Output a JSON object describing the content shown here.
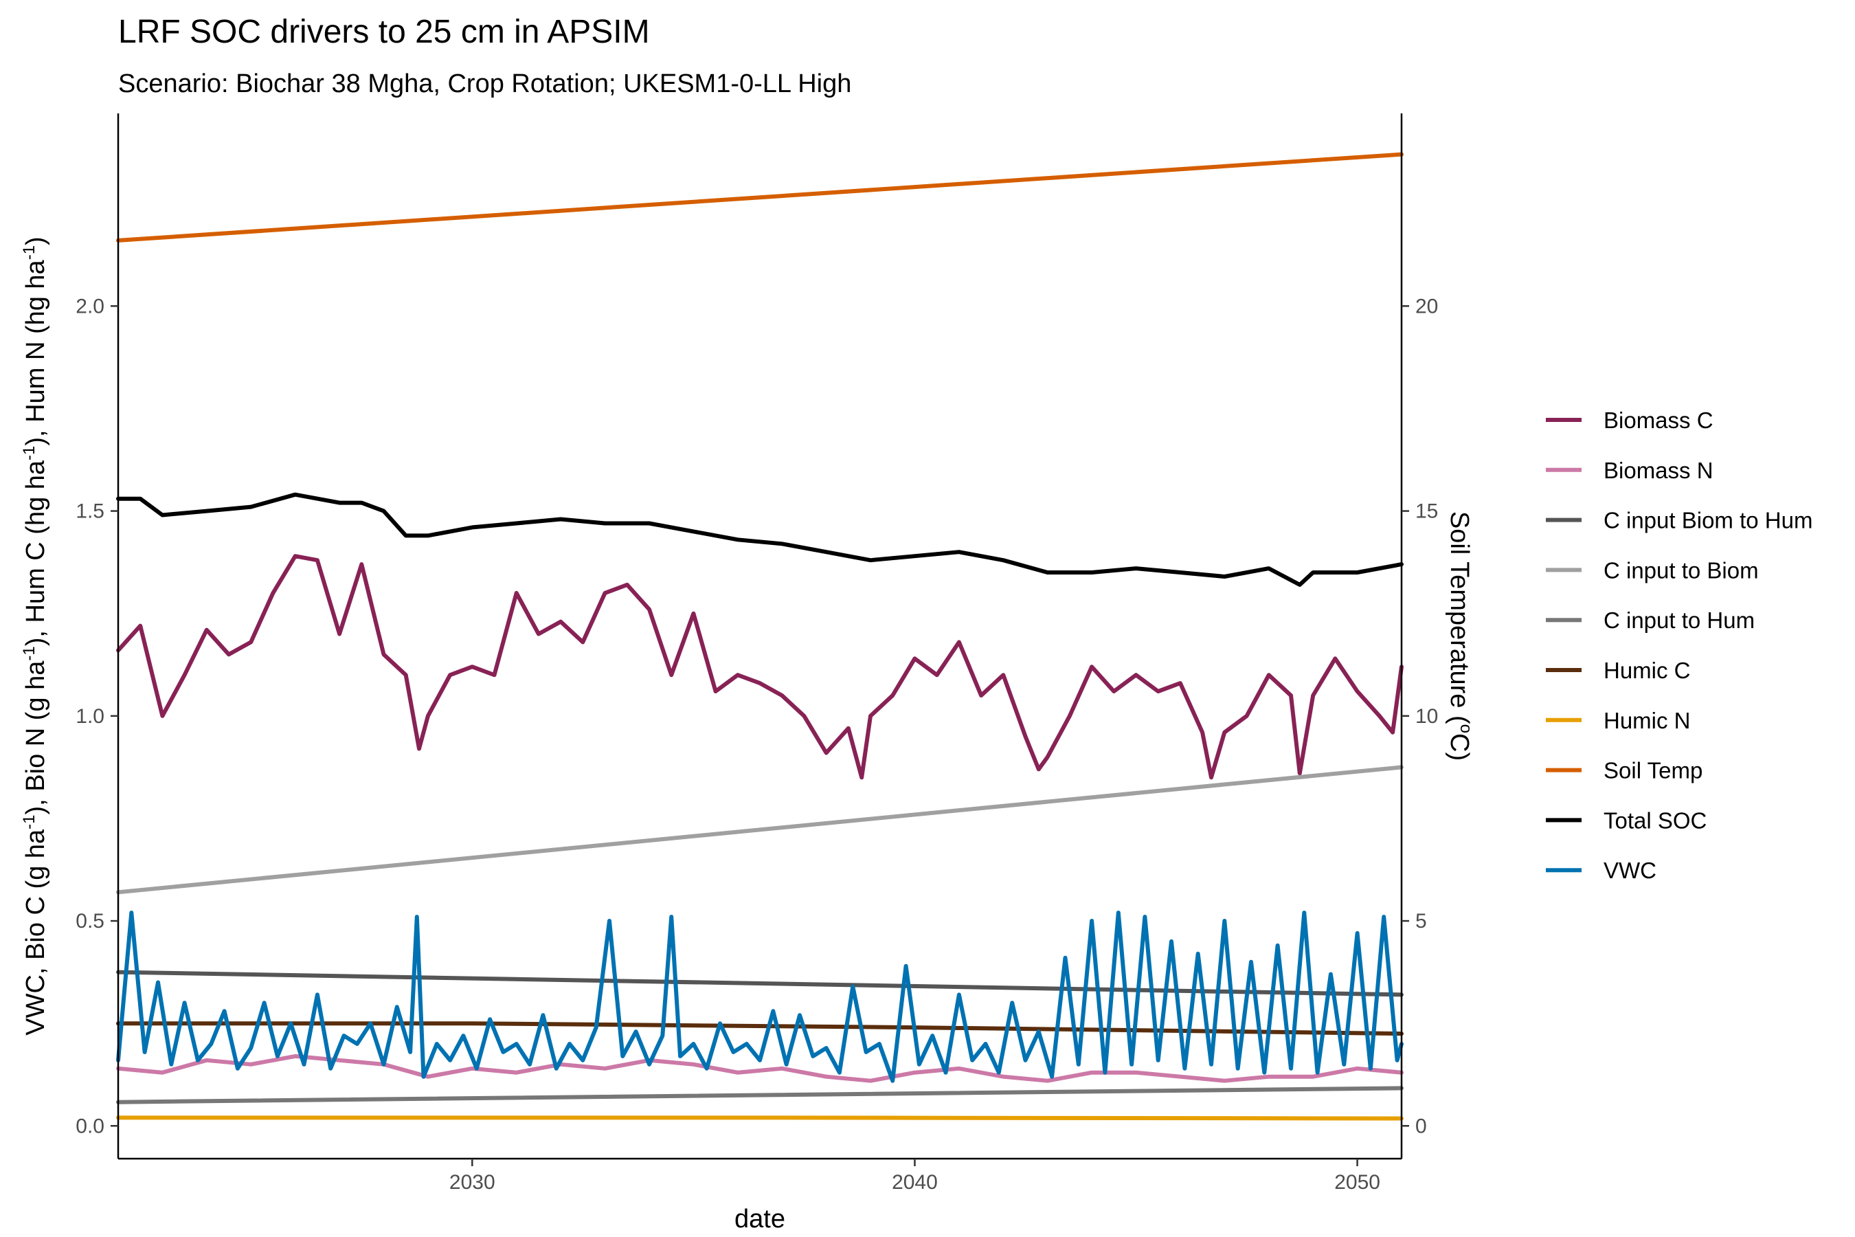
{
  "chart_data": {
    "type": "line",
    "title": "LRF SOC drivers to 25 cm in APSIM",
    "subtitle": "Scenario: Biochar 38 Mgha, Crop Rotation; UKESM1-0-LL High",
    "xlabel": "date",
    "ylabel_left": "VWC, Bio C (g ha-1), Bio N (g ha-1), Hum C (hg ha-1), Hum N (hg ha-1)",
    "ylabel_left_parts": [
      {
        "t": "VWC, Bio C (g ha"
      },
      {
        "t": "-1",
        "sup": true
      },
      {
        "t": "), Bio N (g ha"
      },
      {
        "t": "-1",
        "sup": true
      },
      {
        "t": "), Hum C (hg ha"
      },
      {
        "t": "-1",
        "sup": true
      },
      {
        "t": "), Hum N (hg ha"
      },
      {
        "t": "-1",
        "sup": true
      },
      {
        "t": ")"
      }
    ],
    "ylabel_right": "Soil Temperature (oC)",
    "ylabel_right_parts": [
      {
        "t": "Soil Temperature ("
      },
      {
        "t": "o",
        "sup": true
      },
      {
        "t": "C)"
      }
    ],
    "xlim": [
      2022.0,
      2051.0
    ],
    "ylim_left": [
      -0.08,
      2.47
    ],
    "ylim_right": [
      -0.8,
      24.7
    ],
    "x_ticks": [
      2030,
      2040,
      2050
    ],
    "y_left_ticks": [
      0.0,
      0.5,
      1.0,
      1.5,
      2.0
    ],
    "y_left_tick_labels": [
      "0.0",
      "0.5",
      "1.0",
      "1.5",
      "2.0"
    ],
    "y_right_ticks": [
      0,
      5,
      10,
      15,
      20
    ],
    "y_right_tick_labels": [
      "0",
      "5",
      "10",
      "15",
      "20"
    ],
    "legend_position": "right",
    "grid": false,
    "series": [
      {
        "name": "Biomass C",
        "color": "#882255",
        "axis": "left",
        "x": [
          2022.0,
          2022.5,
          2023.0,
          2023.5,
          2024.0,
          2024.5,
          2025.0,
          2025.5,
          2026.0,
          2026.5,
          2027.0,
          2027.5,
          2028.0,
          2028.5,
          2028.8,
          2029.0,
          2029.5,
          2030.0,
          2030.5,
          2031.0,
          2031.5,
          2032.0,
          2032.5,
          2033.0,
          2033.5,
          2034.0,
          2034.5,
          2035.0,
          2035.5,
          2036.0,
          2036.5,
          2037.0,
          2037.5,
          2038.0,
          2038.5,
          2038.8,
          2039.0,
          2039.5,
          2040.0,
          2040.5,
          2041.0,
          2041.5,
          2042.0,
          2042.5,
          2042.8,
          2043.0,
          2043.5,
          2044.0,
          2044.5,
          2045.0,
          2045.5,
          2046.0,
          2046.5,
          2046.7,
          2047.0,
          2047.5,
          2048.0,
          2048.5,
          2048.7,
          2049.0,
          2049.5,
          2050.0,
          2050.5,
          2050.8,
          2051.0
        ],
        "values": [
          1.16,
          1.22,
          1.0,
          1.1,
          1.21,
          1.15,
          1.18,
          1.3,
          1.39,
          1.38,
          1.2,
          1.37,
          1.15,
          1.1,
          0.92,
          1.0,
          1.1,
          1.12,
          1.1,
          1.3,
          1.2,
          1.23,
          1.18,
          1.3,
          1.32,
          1.26,
          1.1,
          1.25,
          1.06,
          1.1,
          1.08,
          1.05,
          1.0,
          0.91,
          0.97,
          0.85,
          1.0,
          1.05,
          1.14,
          1.1,
          1.18,
          1.05,
          1.1,
          0.95,
          0.87,
          0.9,
          1.0,
          1.12,
          1.06,
          1.1,
          1.06,
          1.08,
          0.96,
          0.85,
          0.96,
          1.0,
          1.1,
          1.05,
          0.86,
          1.05,
          1.14,
          1.06,
          1.0,
          0.96,
          1.12
        ]
      },
      {
        "name": "Biomass N",
        "color": "#CC79A7",
        "axis": "left",
        "x": [
          2022.0,
          2023.0,
          2024.0,
          2025.0,
          2026.0,
          2027.0,
          2028.0,
          2029.0,
          2030.0,
          2031.0,
          2032.0,
          2033.0,
          2034.0,
          2035.0,
          2036.0,
          2037.0,
          2038.0,
          2039.0,
          2040.0,
          2041.0,
          2042.0,
          2043.0,
          2044.0,
          2045.0,
          2046.0,
          2047.0,
          2048.0,
          2049.0,
          2050.0,
          2051.0
        ],
        "values": [
          0.14,
          0.13,
          0.16,
          0.15,
          0.17,
          0.16,
          0.15,
          0.12,
          0.14,
          0.13,
          0.15,
          0.14,
          0.16,
          0.15,
          0.13,
          0.14,
          0.12,
          0.11,
          0.13,
          0.14,
          0.12,
          0.11,
          0.13,
          0.13,
          0.12,
          0.11,
          0.12,
          0.12,
          0.14,
          0.13
        ]
      },
      {
        "name": "C input Biom to Hum",
        "color": "#555555",
        "axis": "left",
        "x": [
          2022.0,
          2051.0
        ],
        "values": [
          0.375,
          0.32
        ]
      },
      {
        "name": "C input to Biom",
        "color": "#A0A0A0",
        "axis": "left",
        "x": [
          2022.0,
          2051.0
        ],
        "values": [
          0.57,
          0.875
        ]
      },
      {
        "name": "C input to Hum",
        "color": "#777777",
        "axis": "left",
        "x": [
          2022.0,
          2051.0
        ],
        "values": [
          0.058,
          0.092
        ]
      },
      {
        "name": "Humic C",
        "color": "#5A2D0C",
        "axis": "left",
        "x": [
          2022.0,
          2030.0,
          2040.0,
          2051.0
        ],
        "values": [
          0.25,
          0.25,
          0.24,
          0.225
        ]
      },
      {
        "name": "Humic N",
        "color": "#E69F00",
        "axis": "left",
        "x": [
          2022.0,
          2037.0,
          2051.0
        ],
        "values": [
          0.02,
          0.02,
          0.018
        ]
      },
      {
        "name": "Soil Temp",
        "color": "#D55E00",
        "axis": "right",
        "x": [
          2022.0,
          2051.0
        ],
        "values": [
          21.6,
          23.7
        ]
      },
      {
        "name": "Total SOC",
        "color": "#000000",
        "axis": "left",
        "x": [
          2022.0,
          2022.5,
          2023.0,
          2024.0,
          2025.0,
          2026.0,
          2027.0,
          2027.5,
          2028.0,
          2028.5,
          2029.0,
          2030.0,
          2031.0,
          2032.0,
          2033.0,
          2034.0,
          2035.0,
          2036.0,
          2037.0,
          2038.0,
          2039.0,
          2040.0,
          2041.0,
          2042.0,
          2043.0,
          2044.0,
          2045.0,
          2046.0,
          2047.0,
          2048.0,
          2048.7,
          2049.0,
          2050.0,
          2051.0
        ],
        "values": [
          1.53,
          1.53,
          1.49,
          1.5,
          1.51,
          1.54,
          1.52,
          1.52,
          1.5,
          1.44,
          1.44,
          1.46,
          1.47,
          1.48,
          1.47,
          1.47,
          1.45,
          1.43,
          1.42,
          1.4,
          1.38,
          1.39,
          1.4,
          1.38,
          1.35,
          1.35,
          1.36,
          1.35,
          1.34,
          1.36,
          1.32,
          1.35,
          1.35,
          1.37
        ]
      },
      {
        "name": "VWC",
        "color": "#0072B2",
        "axis": "left",
        "x": [
          2022.0,
          2022.3,
          2022.6,
          2022.9,
          2023.2,
          2023.5,
          2023.8,
          2024.1,
          2024.4,
          2024.7,
          2025.0,
          2025.3,
          2025.6,
          2025.9,
          2026.2,
          2026.5,
          2026.8,
          2027.1,
          2027.4,
          2027.7,
          2028.0,
          2028.3,
          2028.6,
          2028.75,
          2028.9,
          2029.2,
          2029.5,
          2029.8,
          2030.1,
          2030.4,
          2030.7,
          2031.0,
          2031.3,
          2031.6,
          2031.9,
          2032.2,
          2032.5,
          2032.8,
          2033.1,
          2033.4,
          2033.7,
          2034.0,
          2034.3,
          2034.5,
          2034.7,
          2035.0,
          2035.3,
          2035.6,
          2035.9,
          2036.2,
          2036.5,
          2036.8,
          2037.1,
          2037.4,
          2037.7,
          2038.0,
          2038.3,
          2038.6,
          2038.9,
          2039.2,
          2039.5,
          2039.8,
          2040.1,
          2040.4,
          2040.7,
          2041.0,
          2041.3,
          2041.6,
          2041.9,
          2042.2,
          2042.5,
          2042.8,
          2043.1,
          2043.4,
          2043.7,
          2044.0,
          2044.3,
          2044.6,
          2044.9,
          2045.2,
          2045.5,
          2045.8,
          2046.1,
          2046.4,
          2046.7,
          2047.0,
          2047.3,
          2047.6,
          2047.9,
          2048.2,
          2048.5,
          2048.8,
          2049.1,
          2049.4,
          2049.7,
          2050.0,
          2050.3,
          2050.6,
          2050.9,
          2051.0
        ],
        "values": [
          0.16,
          0.52,
          0.18,
          0.35,
          0.15,
          0.3,
          0.16,
          0.2,
          0.28,
          0.14,
          0.19,
          0.3,
          0.17,
          0.25,
          0.15,
          0.32,
          0.14,
          0.22,
          0.2,
          0.25,
          0.15,
          0.29,
          0.18,
          0.51,
          0.12,
          0.2,
          0.16,
          0.22,
          0.14,
          0.26,
          0.18,
          0.2,
          0.15,
          0.27,
          0.14,
          0.2,
          0.16,
          0.24,
          0.5,
          0.17,
          0.23,
          0.15,
          0.22,
          0.51,
          0.17,
          0.2,
          0.14,
          0.25,
          0.18,
          0.2,
          0.16,
          0.28,
          0.15,
          0.27,
          0.17,
          0.19,
          0.13,
          0.34,
          0.18,
          0.2,
          0.11,
          0.39,
          0.15,
          0.22,
          0.13,
          0.32,
          0.16,
          0.2,
          0.13,
          0.3,
          0.16,
          0.23,
          0.12,
          0.41,
          0.15,
          0.5,
          0.13,
          0.52,
          0.15,
          0.51,
          0.16,
          0.45,
          0.14,
          0.42,
          0.15,
          0.5,
          0.14,
          0.4,
          0.13,
          0.44,
          0.14,
          0.52,
          0.13,
          0.37,
          0.15,
          0.47,
          0.14,
          0.51,
          0.16,
          0.2
        ]
      }
    ]
  }
}
